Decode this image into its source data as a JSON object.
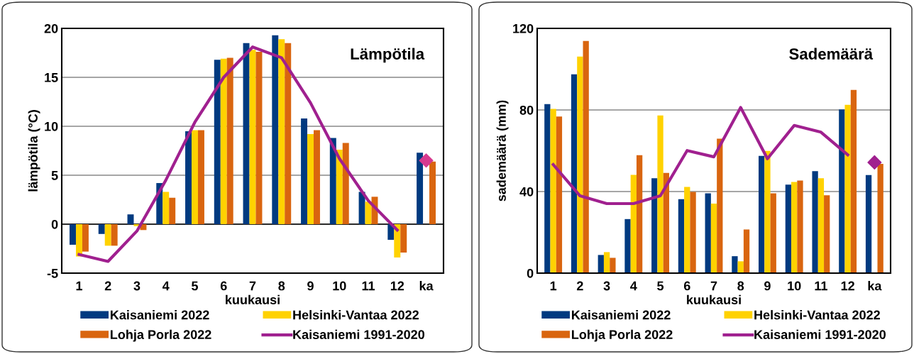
{
  "chart_data": [
    {
      "type": "bar",
      "title": "Lämpötila",
      "xlabel": "kuukausi",
      "ylabel": "lämpötila (°C)",
      "categories": [
        "1",
        "2",
        "3",
        "4",
        "5",
        "6",
        "7",
        "8",
        "9",
        "10",
        "11",
        "12",
        "ka"
      ],
      "series": [
        {
          "name": "Kaisaniemi 2022",
          "color": "#003a80",
          "values": [
            -2.1,
            -1.0,
            1.0,
            4.2,
            9.5,
            16.8,
            18.5,
            19.3,
            10.8,
            8.8,
            3.3,
            -1.6,
            7.3
          ]
        },
        {
          "name": "Helsinki-Vantaa 2022",
          "color": "#ffd200",
          "values": [
            -3.3,
            -2.2,
            -0.2,
            3.3,
            9.6,
            16.9,
            17.8,
            18.9,
            9.2,
            7.6,
            2.3,
            -3.4,
            null
          ]
        },
        {
          "name": "Lohja Porla 2022",
          "color": "#d9650f",
          "values": [
            -2.8,
            -2.2,
            -0.6,
            2.7,
            9.6,
            17.0,
            17.6,
            18.5,
            9.6,
            8.3,
            2.8,
            -2.9,
            6.4
          ]
        },
        {
          "name": "Kaisaniemi 1991-2020",
          "type": "line",
          "color": "#a0208f",
          "values": [
            -3.1,
            -3.8,
            -0.7,
            4.5,
            10.4,
            15.0,
            18.1,
            17.0,
            12.4,
            6.7,
            2.4,
            -0.6,
            null
          ]
        },
        {
          "type": "scatter",
          "marker": "diamond",
          "color": "#d63a8f",
          "x": [
            "ka"
          ],
          "values": [
            6.5
          ]
        }
      ],
      "ylim": [
        -5,
        20
      ],
      "yticks": [
        -5,
        0,
        5,
        10,
        15,
        20
      ],
      "grid": "y",
      "legend": "bottom"
    },
    {
      "type": "bar",
      "title": "Sademäärä",
      "xlabel": "kuukausi",
      "ylabel": "sademäärä (mm)",
      "categories": [
        "1",
        "2",
        "3",
        "4",
        "5",
        "6",
        "7",
        "8",
        "9",
        "10",
        "11",
        "12",
        "ka"
      ],
      "series": [
        {
          "name": "Kaisaniemi 2022",
          "color": "#003a80",
          "values": [
            82.9,
            97.5,
            8.9,
            26.5,
            46.5,
            36.3,
            39.1,
            8.3,
            57.5,
            43.4,
            50.0,
            80.3,
            48.1
          ]
        },
        {
          "name": "Helsinki-Vantaa 2022",
          "color": "#ffd200",
          "values": [
            80.5,
            106.2,
            10.3,
            48.2,
            77.3,
            42.3,
            34.1,
            5.8,
            59.9,
            44.7,
            46.5,
            82.5,
            null
          ]
        },
        {
          "name": "Lohja Porla 2022",
          "color": "#d9650f",
          "values": [
            76.8,
            113.8,
            7.5,
            57.8,
            49.1,
            39.8,
            65.9,
            21.4,
            39.1,
            45.4,
            38.2,
            89.8,
            53.6
          ]
        },
        {
          "name": "Kaisaniemi 1991-2020",
          "type": "line",
          "color": "#a0208f",
          "values": [
            53.2,
            37.9,
            34.1,
            34.1,
            37.9,
            60.1,
            57.0,
            81.2,
            56.1,
            72.4,
            69.1,
            58.0,
            null
          ]
        },
        {
          "type": "scatter",
          "marker": "diamond",
          "color": "#a0208f",
          "x": [
            "ka"
          ],
          "values": [
            54.3
          ]
        }
      ],
      "ylim": [
        0,
        120
      ],
      "yticks": [
        0,
        40,
        80,
        120
      ],
      "grid": "y",
      "legend": "bottom"
    }
  ]
}
